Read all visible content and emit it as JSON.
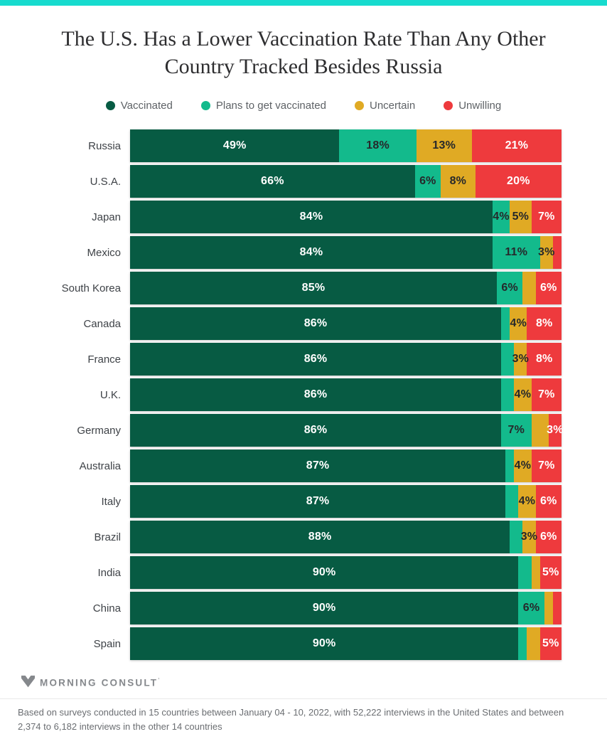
{
  "accent_color": "#17dbce",
  "title": "The U.S. Has a Lower Vaccination Rate Than Any Other Country Tracked Besides Russia",
  "chart_data": {
    "type": "bar",
    "orientation": "horizontal",
    "stacked": true,
    "unit": "%",
    "xlim": [
      0,
      100
    ],
    "grid": false,
    "legend_position": "top-center",
    "categories": [
      "Russia",
      "U.S.A.",
      "Japan",
      "Mexico",
      "South Korea",
      "Canada",
      "France",
      "U.K.",
      "Germany",
      "Australia",
      "Italy",
      "Brazil",
      "India",
      "China",
      "Spain"
    ],
    "series": [
      {
        "name": "Vaccinated",
        "color": "#075b43",
        "label_text_color": "#ffffff",
        "values": [
          49,
          66,
          84,
          84,
          85,
          86,
          86,
          86,
          86,
          87,
          87,
          88,
          90,
          90,
          90
        ],
        "shown_labels": [
          "49%",
          "66%",
          "84%",
          "84%",
          "85%",
          "86%",
          "86%",
          "86%",
          "86%",
          "87%",
          "87%",
          "88%",
          "90%",
          "90%",
          "90%"
        ]
      },
      {
        "name": "Plans to get vaccinated",
        "color": "#13ba8c",
        "label_text_color": "#26282b",
        "values": [
          18,
          6,
          4,
          11,
          6,
          2,
          3,
          3,
          7,
          2,
          3,
          3,
          3,
          6,
          2
        ],
        "shown_labels": [
          "18%",
          "6%",
          "4%",
          "11%",
          "6%",
          "",
          "",
          "",
          "7%",
          "",
          "",
          "",
          "",
          "6%",
          ""
        ]
      },
      {
        "name": "Uncertain",
        "color": "#e0aa24",
        "label_text_color": "#26282b",
        "values": [
          13,
          8,
          5,
          3,
          3,
          4,
          3,
          4,
          4,
          4,
          4,
          3,
          2,
          2,
          3
        ],
        "shown_labels": [
          "13%",
          "8%",
          "5%",
          "3%",
          "",
          "4%",
          "3%",
          "4%",
          "",
          "4%",
          "4%",
          "3%",
          "",
          "",
          ""
        ]
      },
      {
        "name": "Unwilling",
        "color": "#ee3a3d",
        "label_text_color": "#ffffff",
        "values": [
          21,
          20,
          7,
          2,
          6,
          8,
          8,
          7,
          3,
          7,
          6,
          6,
          5,
          2,
          5
        ],
        "shown_labels": [
          "21%",
          "20%",
          "7%",
          "",
          "6%",
          "8%",
          "8%",
          "7%",
          "3%",
          "7%",
          "6%",
          "6%",
          "5%",
          "",
          "5%"
        ]
      }
    ]
  },
  "footer": {
    "brand": "MORNING CONSULT",
    "trademark": "’",
    "footnote": "Based on surveys conducted in 15 countries between January 04 - 10, 2022, with 52,222 interviews in the United States and between 2,374 to 6,182 interviews in the other 14 countries"
  }
}
